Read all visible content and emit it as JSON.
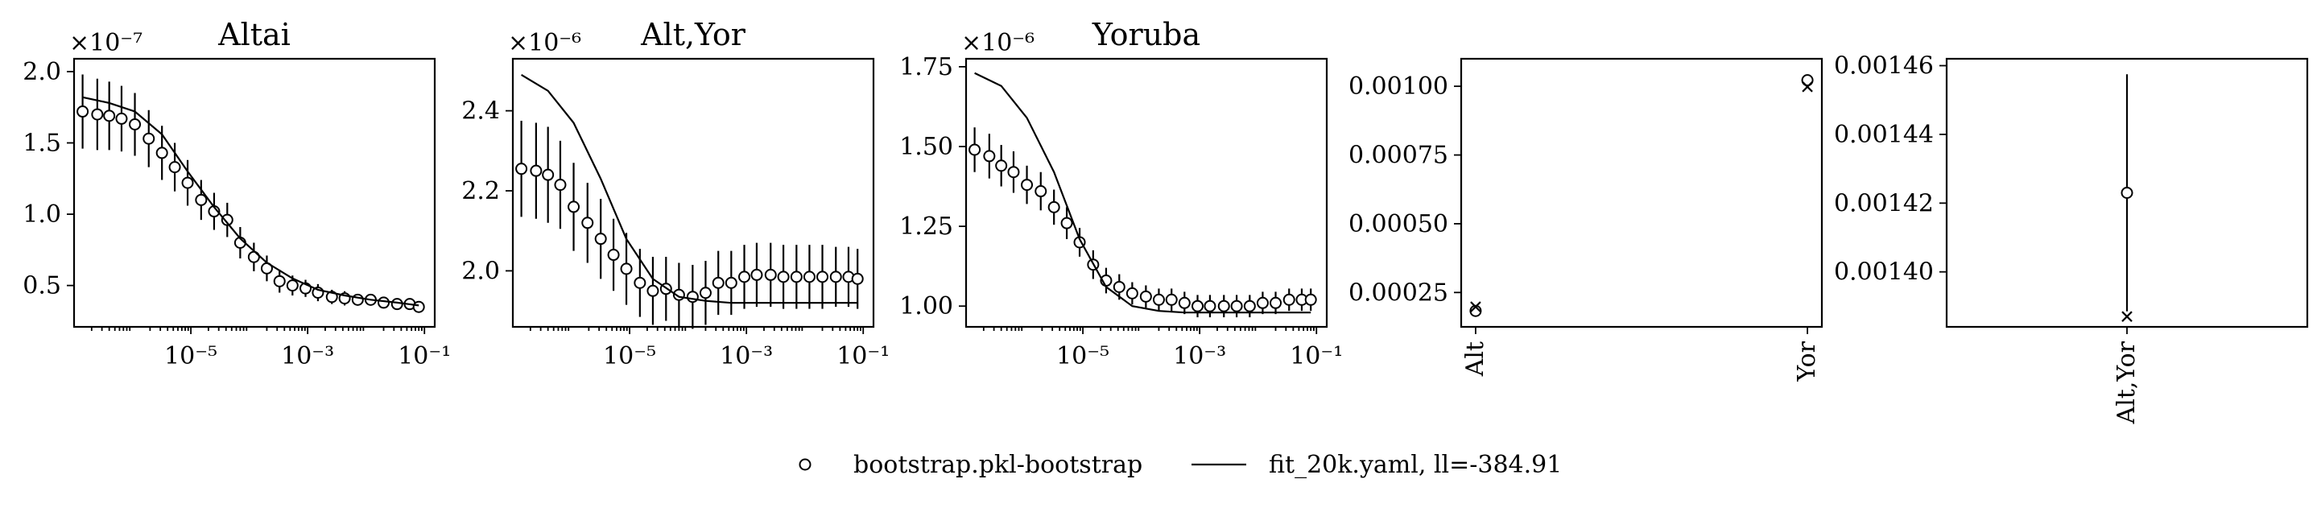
{
  "legend": {
    "bootstrap_label": "bootstrap.pkl-bootstrap",
    "fit_label": "fit_20k.yaml, ll=-384.91"
  },
  "chart_data": [
    {
      "type": "line",
      "title": "Altai",
      "xscale": "log",
      "xlim": [
        1e-07,
        0.15
      ],
      "ylim": [
        0.21,
        2.09
      ],
      "offset_text": "×10⁻⁷",
      "x_ticks": [
        {
          "value": 1e-05,
          "label": "10⁻⁵"
        },
        {
          "value": 0.001,
          "label": "10⁻³"
        },
        {
          "value": 0.1,
          "label": "10⁻¹"
        }
      ],
      "y_ticks": [
        {
          "value": 0.5,
          "label": "0.5"
        },
        {
          "value": 1.0,
          "label": "1.0"
        },
        {
          "value": 1.5,
          "label": "1.5"
        },
        {
          "value": 2.0,
          "label": "2.0"
        }
      ],
      "series": [
        {
          "kind": "points_errorbars",
          "x": [
            1.4e-07,
            2.5e-07,
            4e-07,
            6.5e-07,
            1.1e-06,
            1.9e-06,
            3.2e-06,
            5.3e-06,
            8.8e-06,
            1.5e-05,
            2.5e-05,
            4.2e-05,
            7e-05,
            0.00012,
            0.0002,
            0.00033,
            0.00055,
            0.00092,
            0.0015,
            0.0026,
            0.0043,
            0.0072,
            0.012,
            0.02,
            0.034,
            0.056,
            0.08
          ],
          "y": [
            1.72,
            1.7,
            1.69,
            1.67,
            1.63,
            1.53,
            1.43,
            1.33,
            1.22,
            1.1,
            1.02,
            0.96,
            0.8,
            0.7,
            0.62,
            0.53,
            0.5,
            0.48,
            0.45,
            0.42,
            0.41,
            0.4,
            0.4,
            0.38,
            0.37,
            0.37,
            0.35
          ],
          "yerr": [
            0.26,
            0.25,
            0.24,
            0.23,
            0.22,
            0.2,
            0.19,
            0.17,
            0.16,
            0.14,
            0.13,
            0.12,
            0.11,
            0.1,
            0.09,
            0.08,
            0.07,
            0.06,
            0.06,
            0.05,
            0.05,
            0.04,
            0.04,
            0.04,
            0.03,
            0.03,
            0.03
          ]
        },
        {
          "kind": "line",
          "x": [
            1.4e-07,
            4e-07,
            1.1e-06,
            3.2e-06,
            8.8e-06,
            2.5e-05,
            7e-05,
            0.0002,
            0.00055,
            0.0015,
            0.0043,
            0.012,
            0.034,
            0.08
          ],
          "y": [
            1.82,
            1.78,
            1.72,
            1.56,
            1.3,
            1.05,
            0.83,
            0.66,
            0.55,
            0.47,
            0.43,
            0.4,
            0.38,
            0.36
          ]
        }
      ]
    },
    {
      "type": "line",
      "title": "Alt,Yor",
      "xscale": "log",
      "xlim": [
        1e-07,
        0.15
      ],
      "ylim": [
        1.86,
        2.53
      ],
      "offset_text": "×10⁻⁶",
      "x_ticks": [
        {
          "value": 1e-05,
          "label": "10⁻⁵"
        },
        {
          "value": 0.001,
          "label": "10⁻³"
        },
        {
          "value": 0.1,
          "label": "10⁻¹"
        }
      ],
      "y_ticks": [
        {
          "value": 2.0,
          "label": "2.0"
        },
        {
          "value": 2.2,
          "label": "2.2"
        },
        {
          "value": 2.4,
          "label": "2.4"
        }
      ],
      "series": [
        {
          "kind": "points_errorbars",
          "x": [
            1.4e-07,
            2.5e-07,
            4e-07,
            6.5e-07,
            1.1e-06,
            1.9e-06,
            3.2e-06,
            5.3e-06,
            8.8e-06,
            1.5e-05,
            2.5e-05,
            4.2e-05,
            7e-05,
            0.00012,
            0.0002,
            0.00033,
            0.00055,
            0.00092,
            0.0015,
            0.0026,
            0.0043,
            0.0072,
            0.012,
            0.02,
            0.034,
            0.056,
            0.08
          ],
          "y": [
            2.255,
            2.25,
            2.24,
            2.215,
            2.16,
            2.12,
            2.08,
            2.04,
            2.005,
            1.97,
            1.95,
            1.955,
            1.94,
            1.935,
            1.945,
            1.97,
            1.97,
            1.985,
            1.99,
            1.99,
            1.985,
            1.985,
            1.985,
            1.985,
            1.985,
            1.985,
            1.98
          ],
          "yerr": [
            0.12,
            0.12,
            0.12,
            0.11,
            0.11,
            0.1,
            0.1,
            0.09,
            0.09,
            0.085,
            0.085,
            0.08,
            0.08,
            0.08,
            0.08,
            0.08,
            0.08,
            0.08,
            0.08,
            0.08,
            0.08,
            0.08,
            0.08,
            0.08,
            0.075,
            0.075,
            0.075
          ]
        },
        {
          "kind": "line",
          "x": [
            1.4e-07,
            4e-07,
            1.1e-06,
            3.2e-06,
            8.8e-06,
            2.5e-05,
            7e-05,
            0.0002,
            0.00055,
            0.0015,
            0.0043,
            0.012,
            0.034,
            0.08
          ],
          "y": [
            2.49,
            2.45,
            2.37,
            2.23,
            2.08,
            1.98,
            1.935,
            1.925,
            1.92,
            1.92,
            1.92,
            1.92,
            1.92,
            1.92
          ]
        }
      ]
    },
    {
      "type": "line",
      "title": "Yoruba",
      "xscale": "log",
      "xlim": [
        1e-07,
        0.15
      ],
      "ylim": [
        0.935,
        1.775
      ],
      "offset_text": "×10⁻⁶",
      "x_ticks": [
        {
          "value": 1e-05,
          "label": "10⁻⁵"
        },
        {
          "value": 0.001,
          "label": "10⁻³"
        },
        {
          "value": 0.1,
          "label": "10⁻¹"
        }
      ],
      "y_ticks": [
        {
          "value": 1.0,
          "label": "1.00"
        },
        {
          "value": 1.25,
          "label": "1.25"
        },
        {
          "value": 1.5,
          "label": "1.50"
        },
        {
          "value": 1.75,
          "label": "1.75"
        }
      ],
      "series": [
        {
          "kind": "points_errorbars",
          "x": [
            1.4e-07,
            2.5e-07,
            4e-07,
            6.5e-07,
            1.1e-06,
            1.9e-06,
            3.2e-06,
            5.3e-06,
            8.8e-06,
            1.5e-05,
            2.5e-05,
            4.2e-05,
            7e-05,
            0.00012,
            0.0002,
            0.00033,
            0.00055,
            0.00092,
            0.0015,
            0.0026,
            0.0043,
            0.0072,
            0.012,
            0.02,
            0.034,
            0.056,
            0.08
          ],
          "y": [
            1.49,
            1.47,
            1.44,
            1.42,
            1.38,
            1.36,
            1.31,
            1.26,
            1.2,
            1.13,
            1.08,
            1.06,
            1.04,
            1.03,
            1.02,
            1.02,
            1.01,
            1.0,
            1.0,
            1.0,
            1.0,
            1.0,
            1.01,
            1.01,
            1.02,
            1.02,
            1.02
          ],
          "yerr": [
            0.07,
            0.07,
            0.065,
            0.065,
            0.06,
            0.06,
            0.055,
            0.05,
            0.045,
            0.045,
            0.04,
            0.04,
            0.035,
            0.035,
            0.035,
            0.035,
            0.035,
            0.035,
            0.035,
            0.035,
            0.035,
            0.035,
            0.035,
            0.035,
            0.035,
            0.035,
            0.035
          ]
        },
        {
          "kind": "line",
          "x": [
            1.4e-07,
            4e-07,
            1.1e-06,
            3.2e-06,
            8.8e-06,
            2.5e-05,
            7e-05,
            0.0002,
            0.00055,
            0.0015,
            0.0043,
            0.012,
            0.034,
            0.08
          ],
          "y": [
            1.73,
            1.69,
            1.59,
            1.42,
            1.21,
            1.06,
            1.0,
            0.985,
            0.98,
            0.98,
            0.98,
            0.98,
            0.98,
            0.98
          ]
        }
      ]
    },
    {
      "type": "scatter",
      "title": "",
      "categories": [
        "Alt",
        "Yor"
      ],
      "ylim": [
        0.000125,
        0.0011
      ],
      "y_ticks": [
        {
          "value": 0.00025,
          "label": "0.00025"
        },
        {
          "value": 0.0005,
          "label": "0.00050"
        },
        {
          "value": 0.00075,
          "label": "0.00075"
        },
        {
          "value": 0.001,
          "label": "0.00100"
        }
      ],
      "series": [
        {
          "kind": "points_errorbars",
          "values": [
            0.000183,
            0.001022
          ],
          "yerr": [
            1.2e-05,
            1.4e-05
          ]
        },
        {
          "kind": "x_markers",
          "values": [
            0.000198,
            0.000998
          ]
        }
      ]
    },
    {
      "type": "scatter",
      "title": "",
      "categories": [
        "Alt,Yor"
      ],
      "ylim": [
        0.001384,
        0.001462
      ],
      "y_ticks": [
        {
          "value": 0.0014,
          "label": "0.00140"
        },
        {
          "value": 0.00142,
          "label": "0.00142"
        },
        {
          "value": 0.00144,
          "label": "0.00144"
        },
        {
          "value": 0.00146,
          "label": "0.00146"
        }
      ],
      "series": [
        {
          "kind": "points_errorbars",
          "values": [
            0.001423
          ],
          "yerr": [
            3.45e-05
          ]
        },
        {
          "kind": "x_markers",
          "values": [
            0.001387
          ]
        }
      ]
    }
  ]
}
